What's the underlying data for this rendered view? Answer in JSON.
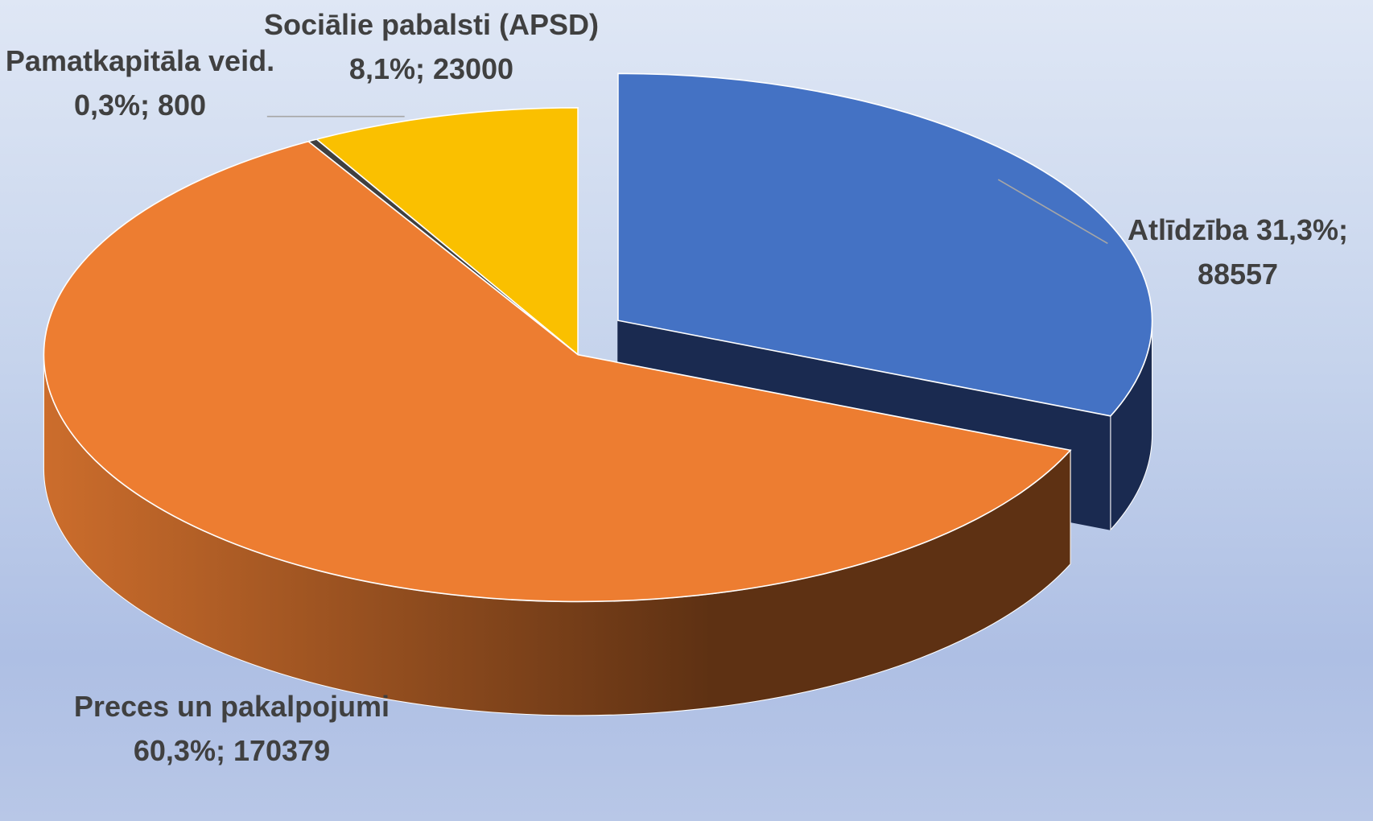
{
  "chart_data": {
    "type": "pie",
    "categories": [
      "Atlīdzība",
      "Preces un pakalpojumi",
      "Pamatkapitāla veid.",
      "Sociālie pabalsti (APSD)"
    ],
    "values": [
      88557,
      170379,
      800,
      23000
    ],
    "value_labels": [
      "31,3%; 88557",
      "60,3%; 170379",
      "0,3%; 800",
      "8,1%; 23000"
    ],
    "colors": [
      "#4472c4",
      "#ed7d31",
      "#404040",
      "#fac000"
    ]
  }
}
